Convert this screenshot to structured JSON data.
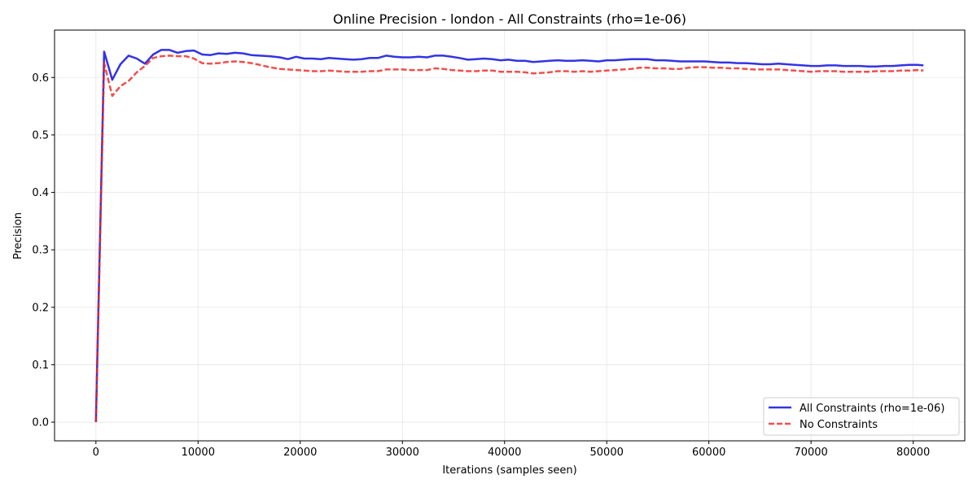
{
  "chart_data": {
    "type": "line",
    "title": "Online Precision - london - All Constraints (rho=1e-06)",
    "xlabel": "Iterations (samples seen)",
    "ylabel": "Precision",
    "xlim": [
      -4050,
      85050
    ],
    "ylim": [
      -0.0325,
      0.6825
    ],
    "xticks": [
      0,
      10000,
      20000,
      30000,
      40000,
      50000,
      60000,
      70000,
      80000
    ],
    "yticks": [
      0.0,
      0.1,
      0.2,
      0.3,
      0.4,
      0.5,
      0.6
    ],
    "xtick_labels": [
      "0",
      "10000",
      "20000",
      "30000",
      "40000",
      "50000",
      "60000",
      "70000",
      "80000"
    ],
    "ytick_labels": [
      "0.0",
      "0.1",
      "0.2",
      "0.3",
      "0.4",
      "0.5",
      "0.6"
    ],
    "grid": true,
    "legend_position": "lower-right",
    "series": [
      {
        "name": "All Constraints (rho=1e-06)",
        "color": "#0000dd",
        "style": "solid",
        "points": [
          [
            0,
            0.0
          ],
          [
            800,
            0.645
          ],
          [
            1600,
            0.596
          ],
          [
            2400,
            0.623
          ],
          [
            3200,
            0.638
          ],
          [
            4000,
            0.633
          ],
          [
            4800,
            0.624
          ],
          [
            5600,
            0.64
          ],
          [
            6400,
            0.648
          ],
          [
            7200,
            0.648
          ],
          [
            8000,
            0.643
          ],
          [
            8800,
            0.646
          ],
          [
            9600,
            0.647
          ],
          [
            10400,
            0.64
          ],
          [
            11200,
            0.639
          ],
          [
            12000,
            0.642
          ],
          [
            12800,
            0.641
          ],
          [
            13600,
            0.643
          ],
          [
            14400,
            0.642
          ],
          [
            15200,
            0.639
          ],
          [
            16000,
            0.638
          ],
          [
            17000,
            0.637
          ],
          [
            18000,
            0.635
          ],
          [
            18800,
            0.632
          ],
          [
            19600,
            0.636
          ],
          [
            20400,
            0.633
          ],
          [
            21200,
            0.633
          ],
          [
            22000,
            0.632
          ],
          [
            22800,
            0.634
          ],
          [
            23600,
            0.633
          ],
          [
            24400,
            0.632
          ],
          [
            25200,
            0.631
          ],
          [
            26000,
            0.632
          ],
          [
            26800,
            0.634
          ],
          [
            27600,
            0.634
          ],
          [
            28400,
            0.638
          ],
          [
            29200,
            0.636
          ],
          [
            30000,
            0.635
          ],
          [
            30800,
            0.635
          ],
          [
            31600,
            0.636
          ],
          [
            32400,
            0.635
          ],
          [
            33200,
            0.638
          ],
          [
            34000,
            0.638
          ],
          [
            34800,
            0.636
          ],
          [
            35600,
            0.634
          ],
          [
            36400,
            0.631
          ],
          [
            37200,
            0.632
          ],
          [
            38000,
            0.633
          ],
          [
            38800,
            0.632
          ],
          [
            39600,
            0.63
          ],
          [
            40400,
            0.631
          ],
          [
            41200,
            0.629
          ],
          [
            42000,
            0.629
          ],
          [
            42800,
            0.627
          ],
          [
            43600,
            0.628
          ],
          [
            44400,
            0.629
          ],
          [
            45200,
            0.63
          ],
          [
            46000,
            0.629
          ],
          [
            46800,
            0.629
          ],
          [
            47600,
            0.63
          ],
          [
            48400,
            0.629
          ],
          [
            49200,
            0.628
          ],
          [
            50000,
            0.63
          ],
          [
            50800,
            0.63
          ],
          [
            51600,
            0.631
          ],
          [
            52400,
            0.632
          ],
          [
            53200,
            0.632
          ],
          [
            54000,
            0.632
          ],
          [
            54800,
            0.63
          ],
          [
            55600,
            0.63
          ],
          [
            56400,
            0.629
          ],
          [
            57200,
            0.628
          ],
          [
            58000,
            0.628
          ],
          [
            58800,
            0.628
          ],
          [
            59600,
            0.628
          ],
          [
            60400,
            0.627
          ],
          [
            61200,
            0.626
          ],
          [
            62000,
            0.626
          ],
          [
            62800,
            0.625
          ],
          [
            63600,
            0.625
          ],
          [
            64400,
            0.624
          ],
          [
            65200,
            0.623
          ],
          [
            66000,
            0.623
          ],
          [
            66800,
            0.624
          ],
          [
            67600,
            0.623
          ],
          [
            68400,
            0.622
          ],
          [
            69200,
            0.621
          ],
          [
            70000,
            0.62
          ],
          [
            70800,
            0.62
          ],
          [
            71600,
            0.621
          ],
          [
            72400,
            0.621
          ],
          [
            73200,
            0.62
          ],
          [
            74000,
            0.62
          ],
          [
            74800,
            0.62
          ],
          [
            75600,
            0.619
          ],
          [
            76400,
            0.619
          ],
          [
            77200,
            0.62
          ],
          [
            78000,
            0.62
          ],
          [
            78800,
            0.621
          ],
          [
            79600,
            0.622
          ],
          [
            80400,
            0.622
          ],
          [
            81000,
            0.621
          ]
        ]
      },
      {
        "name": "No Constraints",
        "color": "#ee2222",
        "style": "dashed",
        "points": [
          [
            0,
            0.0
          ],
          [
            800,
            0.625
          ],
          [
            1600,
            0.568
          ],
          [
            2400,
            0.585
          ],
          [
            3200,
            0.594
          ],
          [
            4000,
            0.609
          ],
          [
            4800,
            0.62
          ],
          [
            5600,
            0.634
          ],
          [
            6400,
            0.637
          ],
          [
            7200,
            0.638
          ],
          [
            8000,
            0.637
          ],
          [
            8800,
            0.637
          ],
          [
            9600,
            0.633
          ],
          [
            10400,
            0.625
          ],
          [
            11200,
            0.624
          ],
          [
            12000,
            0.625
          ],
          [
            12800,
            0.627
          ],
          [
            13600,
            0.628
          ],
          [
            14400,
            0.627
          ],
          [
            15200,
            0.625
          ],
          [
            16000,
            0.622
          ],
          [
            17000,
            0.618
          ],
          [
            18000,
            0.615
          ],
          [
            18800,
            0.614
          ],
          [
            19600,
            0.613
          ],
          [
            20400,
            0.612
          ],
          [
            21200,
            0.611
          ],
          [
            22000,
            0.611
          ],
          [
            22800,
            0.612
          ],
          [
            23600,
            0.611
          ],
          [
            24400,
            0.61
          ],
          [
            25200,
            0.61
          ],
          [
            26000,
            0.61
          ],
          [
            26800,
            0.611
          ],
          [
            27600,
            0.611
          ],
          [
            28400,
            0.614
          ],
          [
            29200,
            0.614
          ],
          [
            30000,
            0.614
          ],
          [
            30800,
            0.613
          ],
          [
            31600,
            0.613
          ],
          [
            32400,
            0.613
          ],
          [
            33200,
            0.616
          ],
          [
            34000,
            0.615
          ],
          [
            34800,
            0.613
          ],
          [
            35600,
            0.612
          ],
          [
            36400,
            0.611
          ],
          [
            37200,
            0.611
          ],
          [
            38000,
            0.612
          ],
          [
            38800,
            0.612
          ],
          [
            39600,
            0.61
          ],
          [
            40400,
            0.61
          ],
          [
            41200,
            0.61
          ],
          [
            42000,
            0.609
          ],
          [
            42800,
            0.607
          ],
          [
            43600,
            0.608
          ],
          [
            44400,
            0.609
          ],
          [
            45200,
            0.611
          ],
          [
            46000,
            0.611
          ],
          [
            46800,
            0.61
          ],
          [
            47600,
            0.611
          ],
          [
            48400,
            0.61
          ],
          [
            49200,
            0.611
          ],
          [
            50000,
            0.612
          ],
          [
            50800,
            0.613
          ],
          [
            51600,
            0.614
          ],
          [
            52400,
            0.615
          ],
          [
            53200,
            0.617
          ],
          [
            54000,
            0.617
          ],
          [
            54800,
            0.616
          ],
          [
            55600,
            0.616
          ],
          [
            56400,
            0.615
          ],
          [
            57200,
            0.615
          ],
          [
            58000,
            0.617
          ],
          [
            58800,
            0.618
          ],
          [
            59600,
            0.618
          ],
          [
            60400,
            0.617
          ],
          [
            61200,
            0.617
          ],
          [
            62000,
            0.616
          ],
          [
            62800,
            0.616
          ],
          [
            63600,
            0.615
          ],
          [
            64400,
            0.614
          ],
          [
            65200,
            0.614
          ],
          [
            66000,
            0.614
          ],
          [
            66800,
            0.614
          ],
          [
            67600,
            0.613
          ],
          [
            68400,
            0.612
          ],
          [
            69200,
            0.611
          ],
          [
            70000,
            0.61
          ],
          [
            70800,
            0.611
          ],
          [
            71600,
            0.611
          ],
          [
            72400,
            0.611
          ],
          [
            73200,
            0.61
          ],
          [
            74000,
            0.61
          ],
          [
            74800,
            0.61
          ],
          [
            75600,
            0.61
          ],
          [
            76400,
            0.611
          ],
          [
            77200,
            0.611
          ],
          [
            78000,
            0.611
          ],
          [
            78800,
            0.612
          ],
          [
            79600,
            0.612
          ],
          [
            80400,
            0.613
          ],
          [
            81000,
            0.612
          ]
        ]
      }
    ]
  }
}
